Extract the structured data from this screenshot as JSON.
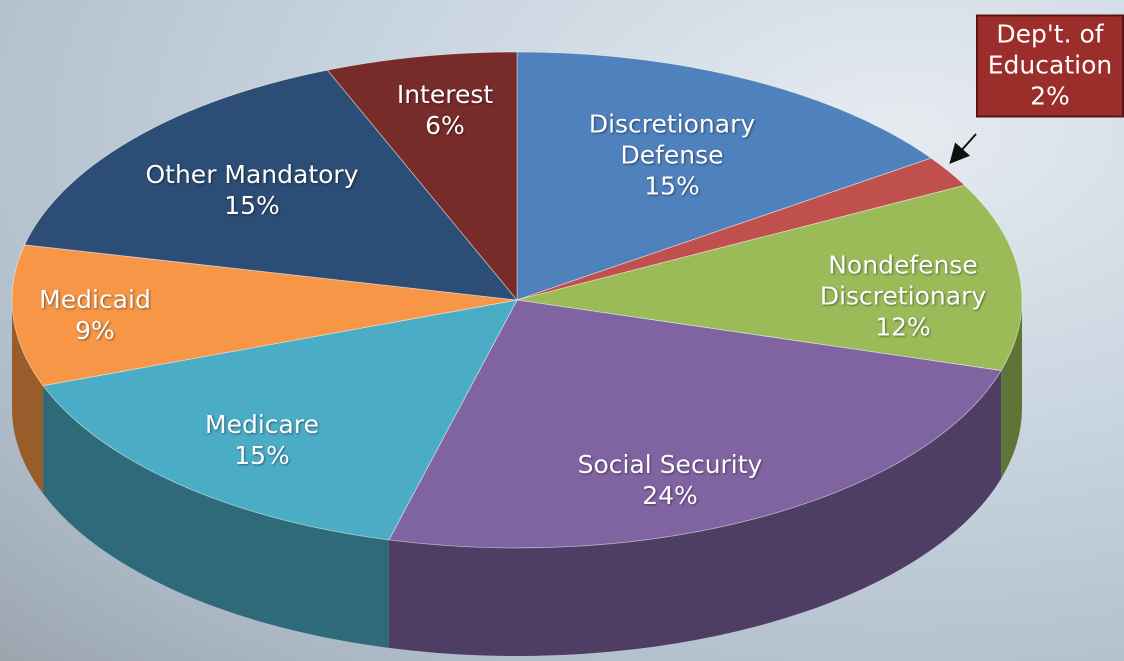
{
  "chart_data": {
    "type": "pie3d",
    "categories": [
      "Discretionary Defense",
      "Dep't. of Education",
      "Nondefense Discretionary",
      "Social Security",
      "Medicare",
      "Medicaid",
      "Other Mandatory",
      "Interest"
    ],
    "values": [
      15,
      2,
      12,
      24,
      15,
      9,
      15,
      6
    ],
    "value_labels": [
      "15%",
      "2%",
      "12%",
      "24%",
      "15%",
      "9%",
      "15%",
      "6%"
    ],
    "colors": [
      "#4f81bd",
      "#c0504d",
      "#9bbb59",
      "#8064a2",
      "#4bacc6",
      "#f79646",
      "#2c4d75",
      "#772c2a"
    ]
  }
}
